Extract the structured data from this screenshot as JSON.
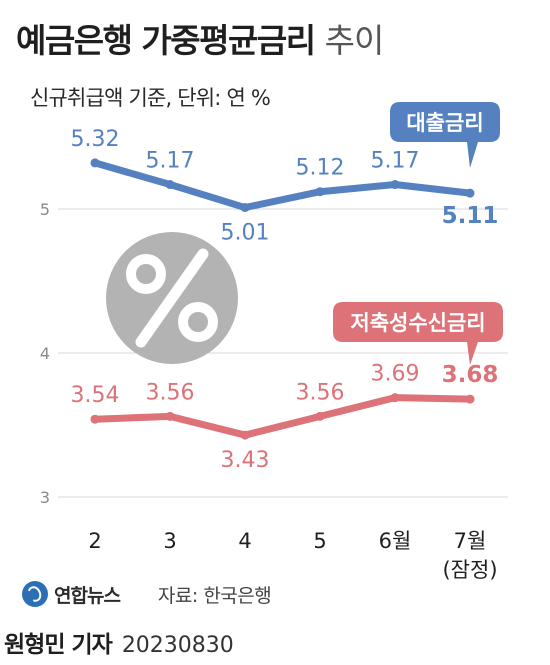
{
  "title": "예금은행 가중평균금리",
  "title_suffix": "추이",
  "subtitle": "신규취급액 기준, 단위: 연 %",
  "footer": {
    "logo_text": "연합뉴스",
    "source": "자료: 한국은행",
    "byline_name": "원형민 기자",
    "byline_date": "20230830"
  },
  "colors": {
    "loan": "#5581c1",
    "deposit": "#dd7278",
    "grid": "#d8d8d8",
    "percent_circle": "#b3b3b3"
  },
  "icon": "percent-icon",
  "chart_data": {
    "type": "line",
    "categories": [
      "2",
      "3",
      "4",
      "5",
      "6월",
      "7월"
    ],
    "category_notes": [
      "",
      "",
      "",
      "",
      "",
      "(잠정)"
    ],
    "yticks": [
      3,
      4,
      5
    ],
    "ylim": [
      3,
      5.6
    ],
    "grid": true,
    "series": [
      {
        "name": "대출금리",
        "values": [
          5.32,
          5.17,
          5.01,
          5.12,
          5.17,
          5.11
        ],
        "labels": [
          "5.32",
          "5.17",
          "5.01",
          "5.12",
          "5.17",
          "5.11"
        ]
      },
      {
        "name": "저축성수신금리",
        "values": [
          3.54,
          3.56,
          3.43,
          3.56,
          3.69,
          3.68
        ],
        "labels": [
          "3.54",
          "3.56",
          "3.43",
          "3.56",
          "3.69",
          "3.68"
        ]
      }
    ]
  }
}
